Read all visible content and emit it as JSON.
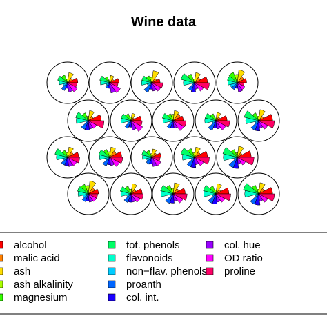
{
  "chart_data": {
    "type": "segment-star",
    "title": "Wine data",
    "variables": [
      {
        "name": "alcohol",
        "color": "#ff0000"
      },
      {
        "name": "malic acid",
        "color": "#ff7f00"
      },
      {
        "name": "ash",
        "color": "#ffdd00"
      },
      {
        "name": "ash alkalinity",
        "color": "#aaff00"
      },
      {
        "name": "magnesium",
        "color": "#33ff00"
      },
      {
        "name": "tot. phenols",
        "color": "#00ff66"
      },
      {
        "name": "flavonoids",
        "color": "#00ffcc"
      },
      {
        "name": "non−flav. phenols",
        "color": "#00ccff"
      },
      {
        "name": "proanth",
        "color": "#0066ff"
      },
      {
        "name": "col. int.",
        "color": "#1a00ff"
      },
      {
        "name": "col. hue",
        "color": "#9900ff"
      },
      {
        "name": "OD ratio",
        "color": "#ff00ff"
      },
      {
        "name": "proline",
        "color": "#ff0066"
      }
    ],
    "observations": [
      [
        0.55,
        0.3,
        0.55,
        0.2,
        0.45,
        0.55,
        0.45,
        0.25,
        0.45,
        0.3,
        0.5,
        0.6,
        0.5
      ],
      [
        0.5,
        0.25,
        0.4,
        0.15,
        0.35,
        0.55,
        0.5,
        0.2,
        0.3,
        0.3,
        0.55,
        0.65,
        0.45
      ],
      [
        0.45,
        0.3,
        0.65,
        0.3,
        0.4,
        0.55,
        0.55,
        0.25,
        0.55,
        0.35,
        0.45,
        0.55,
        0.6
      ],
      [
        0.7,
        0.35,
        0.55,
        0.2,
        0.5,
        0.75,
        0.6,
        0.15,
        0.45,
        0.5,
        0.35,
        0.55,
        0.8
      ],
      [
        0.5,
        0.4,
        0.7,
        0.45,
        0.6,
        0.55,
        0.5,
        0.4,
        0.4,
        0.3,
        0.5,
        0.45,
        0.35
      ],
      [
        0.7,
        0.3,
        0.55,
        0.25,
        0.45,
        0.7,
        0.65,
        0.15,
        0.5,
        0.5,
        0.45,
        0.5,
        0.85
      ],
      [
        0.55,
        0.2,
        0.4,
        0.2,
        0.4,
        0.55,
        0.55,
        0.2,
        0.45,
        0.35,
        0.5,
        0.7,
        0.6
      ],
      [
        0.55,
        0.45,
        0.55,
        0.35,
        0.4,
        0.6,
        0.55,
        0.2,
        0.45,
        0.4,
        0.4,
        0.65,
        0.7
      ],
      [
        0.6,
        0.25,
        0.45,
        0.15,
        0.4,
        0.6,
        0.6,
        0.2,
        0.55,
        0.4,
        0.45,
        0.6,
        0.75
      ],
      [
        0.75,
        0.3,
        0.6,
        0.25,
        0.45,
        0.8,
        0.7,
        0.2,
        0.55,
        0.55,
        0.4,
        0.55,
        0.85
      ],
      [
        0.6,
        0.35,
        0.55,
        0.25,
        0.4,
        0.7,
        0.6,
        0.25,
        0.45,
        0.45,
        0.5,
        0.55,
        0.65
      ],
      [
        0.65,
        0.4,
        0.55,
        0.3,
        0.45,
        0.6,
        0.55,
        0.25,
        0.5,
        0.4,
        0.45,
        0.6,
        0.7
      ],
      [
        0.5,
        0.3,
        0.45,
        0.2,
        0.4,
        0.55,
        0.5,
        0.3,
        0.4,
        0.35,
        0.5,
        0.55,
        0.45
      ],
      [
        0.7,
        0.35,
        0.55,
        0.25,
        0.5,
        0.75,
        0.65,
        0.2,
        0.55,
        0.55,
        0.4,
        0.55,
        0.8
      ],
      [
        0.75,
        0.3,
        0.6,
        0.25,
        0.45,
        0.8,
        0.75,
        0.2,
        0.6,
        0.6,
        0.35,
        0.5,
        0.9
      ],
      [
        0.55,
        0.4,
        0.7,
        0.45,
        0.55,
        0.6,
        0.55,
        0.3,
        0.45,
        0.4,
        0.45,
        0.5,
        0.5
      ],
      [
        0.6,
        0.3,
        0.55,
        0.25,
        0.45,
        0.6,
        0.55,
        0.25,
        0.5,
        0.45,
        0.45,
        0.55,
        0.65
      ],
      [
        0.65,
        0.35,
        0.6,
        0.3,
        0.5,
        0.7,
        0.65,
        0.2,
        0.55,
        0.5,
        0.4,
        0.6,
        0.75
      ],
      [
        0.7,
        0.3,
        0.55,
        0.2,
        0.45,
        0.7,
        0.65,
        0.2,
        0.55,
        0.55,
        0.45,
        0.55,
        0.8
      ],
      [
        0.75,
        0.35,
        0.6,
        0.25,
        0.5,
        0.85,
        0.75,
        0.2,
        0.6,
        0.6,
        0.4,
        0.55,
        0.85
      ]
    ],
    "legend_position": "bottom"
  }
}
